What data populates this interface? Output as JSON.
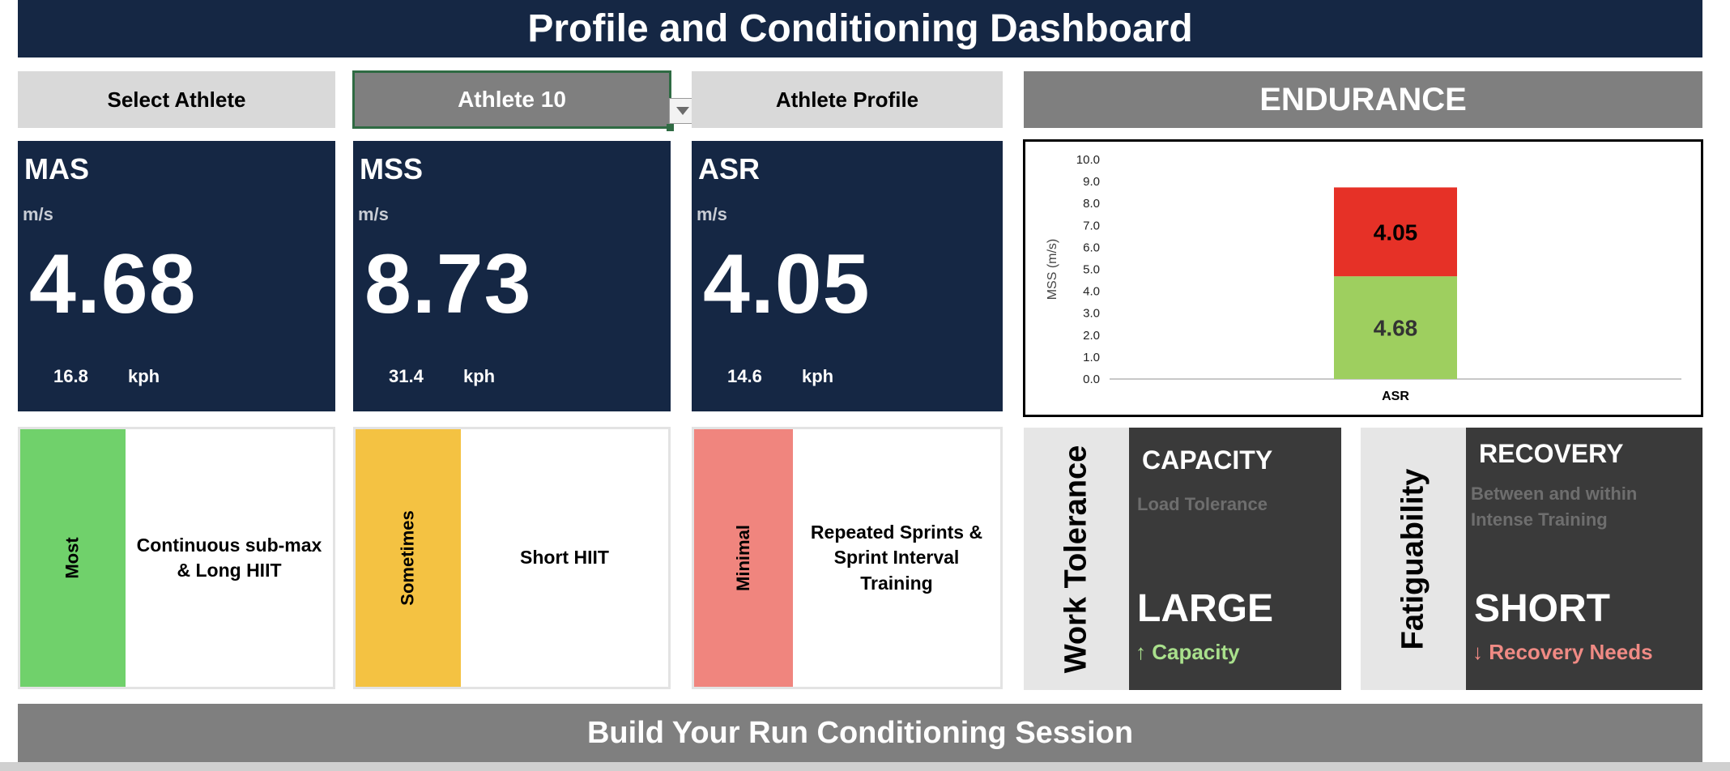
{
  "header": {
    "title": "Profile and Conditioning Dashboard"
  },
  "selector": {
    "label": "Select Athlete",
    "value": "Athlete 10",
    "profile_label": "Athlete Profile"
  },
  "metrics": [
    {
      "name": "MAS",
      "unit": "m/s",
      "value": "4.68",
      "kph_value": "16.8",
      "kph_label": "kph"
    },
    {
      "name": "MSS",
      "unit": "m/s",
      "value": "8.73",
      "kph_value": "31.4",
      "kph_label": "kph"
    },
    {
      "name": "ASR",
      "unit": "m/s",
      "value": "4.05",
      "kph_value": "14.6",
      "kph_label": "kph"
    }
  ],
  "zones": [
    {
      "tag": "Most",
      "color": "#70d16b",
      "description": "Continuous sub-max & Long HIIT"
    },
    {
      "tag": "Sometimes",
      "color": "#f4c242",
      "description": "Short HIIT"
    },
    {
      "tag": "Minimal",
      "color": "#f0857e",
      "description": "Repeated Sprints & Sprint Interval Training"
    }
  ],
  "endurance": {
    "title": "ENDURANCE"
  },
  "chart_data": {
    "type": "bar",
    "stacked": true,
    "categories": [
      "ASR"
    ],
    "series": [
      {
        "values": [
          4.68
        ],
        "color": "#9ecf5f",
        "label": "4.68"
      },
      {
        "values": [
          4.05
        ],
        "color": "#e63127",
        "label": "4.05"
      }
    ],
    "ylabel": "MSS (m/s)",
    "ylim": [
      0,
      10
    ],
    "yticks": [
      "0.0",
      "1.0",
      "2.0",
      "3.0",
      "4.0",
      "5.0",
      "6.0",
      "7.0",
      "8.0",
      "9.0",
      "10.0"
    ],
    "grid": false
  },
  "work_tolerance": {
    "side_label": "Work Tolerance",
    "title": "CAPACITY",
    "subtitle": "Load Tolerance",
    "result": "LARGE",
    "indicator": "↑ Capacity",
    "indicator_color": "#a9e08c"
  },
  "fatiguability": {
    "side_label": "Fatiguability",
    "title": "RECOVERY",
    "subtitle": "Between and within Intense Training",
    "result": "SHORT",
    "indicator": "↓ Recovery Needs",
    "indicator_color": "#f08a84"
  },
  "footer": {
    "title": "Build Your Run Conditioning Session"
  }
}
